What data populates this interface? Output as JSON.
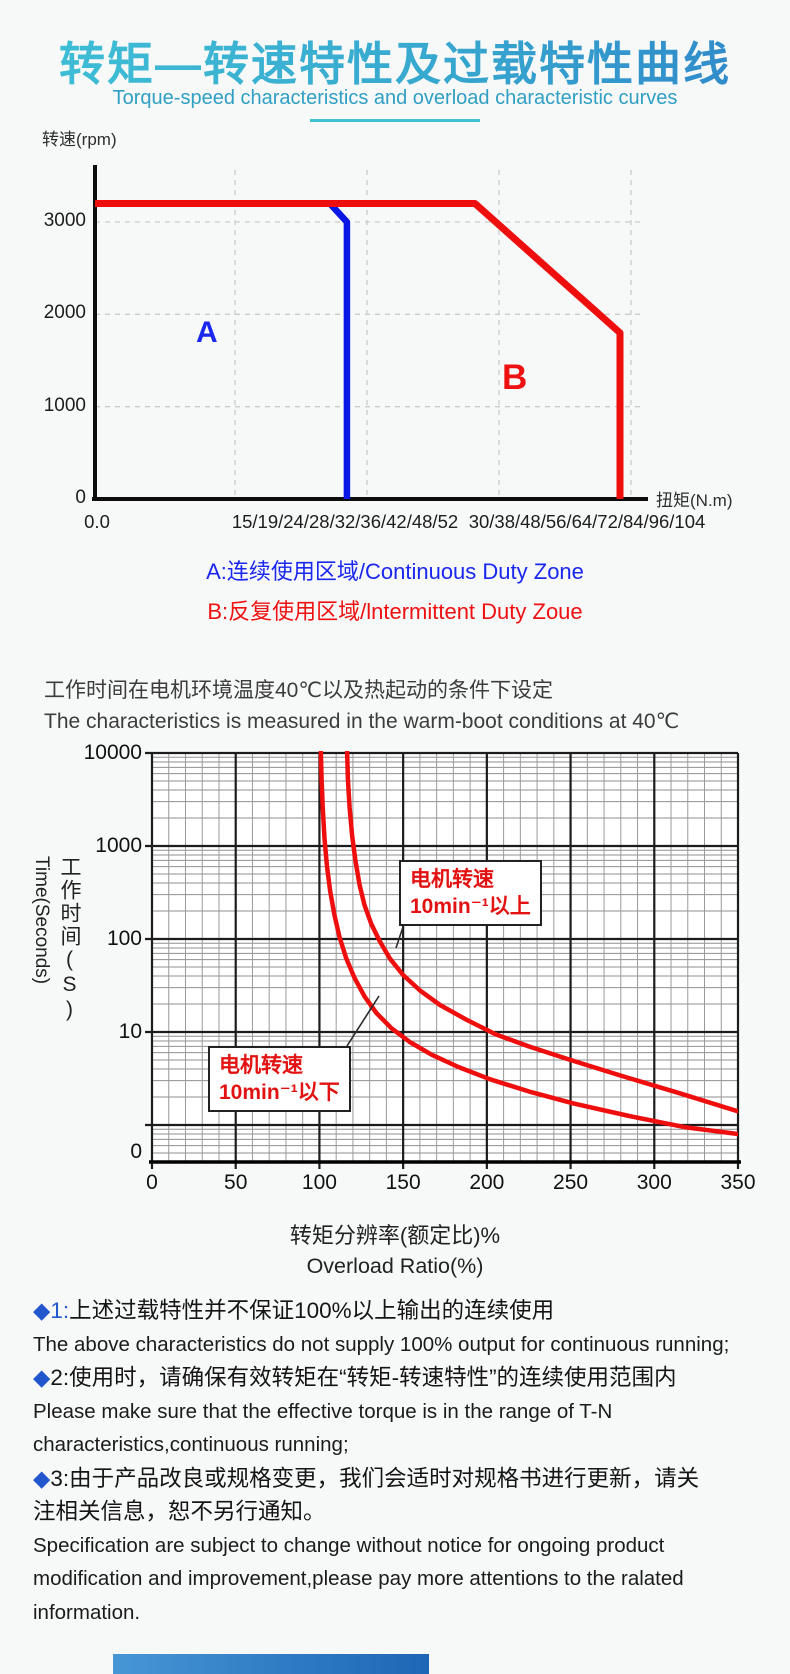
{
  "header": {
    "title": "转矩—转速特性及过载特性曲线",
    "subtitle": "Torque-speed characteristics and overload characteristic curves"
  },
  "colors": {
    "title_gradient_start": "#3fc0d6",
    "title_gradient_end": "#2f86c9",
    "subtitle": "#2f9fc4",
    "underline": "#3fc3d2",
    "curve_red": "#ee0e0e",
    "curve_blue": "#0a18e6",
    "legend_a_blue": "#1a27ee",
    "legend_b_red": "#ee1111",
    "diamond_blue": "#2156cc",
    "footer_start": "#4796d6",
    "footer_end": "#1d66b5"
  },
  "chart_data": [
    {
      "type": "line",
      "name": "torque-speed-characteristic",
      "ylabel": "转速(rpm)",
      "xlabel": "扭矩(N.m)",
      "yticks": [
        0,
        1000,
        2000,
        3000
      ],
      "ylim": [
        0,
        3600
      ],
      "xtick_labels": [
        "0.0",
        "15/19/24/28/32/36/42/48/52",
        "30/38/48/56/64/72/84/96/104"
      ],
      "grid": "dashed",
      "series": [
        {
          "name": "intermittent-duty-limit",
          "color": "#ee0e0e",
          "x_unit": "fraction-of-axis",
          "y_unit": "rpm",
          "points": [
            [
              0,
              3200
            ],
            [
              0.715,
              3200
            ],
            [
              0.988,
              1800
            ],
            [
              0.988,
              0
            ]
          ]
        },
        {
          "name": "continuous-duty-limit",
          "color": "#0a18e6",
          "x_unit": "fraction-of-axis",
          "y_unit": "rpm",
          "points": [
            [
              0.442,
              3200
            ],
            [
              0.474,
              3000
            ],
            [
              0.474,
              0
            ]
          ]
        }
      ],
      "zone_labels": [
        {
          "text": "A",
          "color": "#1a27ee"
        },
        {
          "text": "B",
          "color": "#ee1111"
        }
      ],
      "legend": [
        {
          "text": "A:连续使用区域/Continuous Duty Zone",
          "color": "#1a27ee"
        },
        {
          "text": "B:反复使用区域/lntermittent Duty Zoue",
          "color": "#ee1111"
        }
      ]
    },
    {
      "type": "line",
      "name": "overload-characteristic",
      "yscale": "log",
      "ylabel_cn": "工作时间(S)",
      "ylabel_en": "Time(Seconds)",
      "xlabel_cn": "转矩分辨率(额定比)%",
      "xlabel_en": "Overload Ratio(%)",
      "ytick_labels": [
        "10000",
        "1000",
        "100",
        "10",
        "0"
      ],
      "ytick_values": [
        10000,
        1000,
        100,
        10,
        1
      ],
      "xticks": [
        0,
        50,
        100,
        150,
        200,
        250,
        300,
        350
      ],
      "xlim": [
        0,
        350
      ],
      "series": [
        {
          "name": "motor-speed-below-10-per-min",
          "color": "#ee0e0e",
          "points": [
            [
              100.8,
              11000
            ],
            [
              101.3,
              5200
            ],
            [
              102,
              2500
            ],
            [
              103,
              1200
            ],
            [
              104.5,
              600
            ],
            [
              106.5,
              320
            ],
            [
              109,
              180
            ],
            [
              112,
              105
            ],
            [
              116,
              62
            ],
            [
              121,
              38
            ],
            [
              127,
              24
            ],
            [
              134,
              16
            ],
            [
              143,
              11
            ],
            [
              154,
              7.8
            ],
            [
              167,
              5.7
            ],
            [
              183,
              4.2
            ],
            [
              202,
              3.1
            ],
            [
              225,
              2.3
            ],
            [
              252,
              1.7
            ],
            [
              285,
              1.25
            ],
            [
              318,
              0.95
            ],
            [
              350,
              0.8
            ]
          ]
        },
        {
          "name": "motor-speed-above-10-per-min",
          "color": "#ee0e0e",
          "points": [
            [
              116.5,
              11000
            ],
            [
              117,
              5200
            ],
            [
              118,
              2600
            ],
            [
              119.5,
              1300
            ],
            [
              121.5,
              700
            ],
            [
              124,
              380
            ],
            [
              127,
              230
            ],
            [
              131,
              145
            ],
            [
              136,
              95
            ],
            [
              142,
              62
            ],
            [
              150,
              41
            ],
            [
              160,
              28
            ],
            [
              172,
              19.5
            ],
            [
              188,
              13.5
            ],
            [
              205,
              9.5
            ],
            [
              225,
              7.0
            ],
            [
              250,
              5.0
            ],
            [
              280,
              3.4
            ],
            [
              315,
              2.2
            ],
            [
              350,
              1.4
            ]
          ]
        }
      ],
      "annotations": [
        {
          "lines": [
            "电机转速",
            "10min⁻¹以上"
          ]
        },
        {
          "lines": [
            "电机转速",
            "10min⁻¹以下"
          ]
        }
      ]
    }
  ],
  "condition": {
    "cn": "工作时间在电机环境温度40℃以及热起动的条件下设定",
    "en": "The characteristics is measured in the warm-boot conditions at 40℃"
  },
  "notes": [
    {
      "marker": "◆",
      "num": "1:",
      "num_color": "blue",
      "cn_lines": [
        "上述过载特性并不保证100%以上输出的连续使用"
      ],
      "en_lines": [
        "The above characteristics do not supply 100% output for continuous running;"
      ]
    },
    {
      "marker": "◆",
      "num": "2:",
      "num_color": "black",
      "cn_lines": [
        "使用时，请确保有效转矩在“转矩-转速特性”的连续使用范围内"
      ],
      "en_lines": [
        "Please make sure that the effective torque is in the range of T-N",
        "characteristics,continuous running;"
      ]
    },
    {
      "marker": "◆",
      "num": "3:",
      "num_color": "black",
      "cn_lines": [
        "由于产品改良或规格变更，我们会适时对规格书进行更新，请关",
        "注相关信息，恕不另行通知。"
      ],
      "en_lines": [
        "Specification are subject to change without notice for ongoing product",
        "modification and improvement,please pay more attentions to the ralated",
        "information."
      ]
    }
  ]
}
